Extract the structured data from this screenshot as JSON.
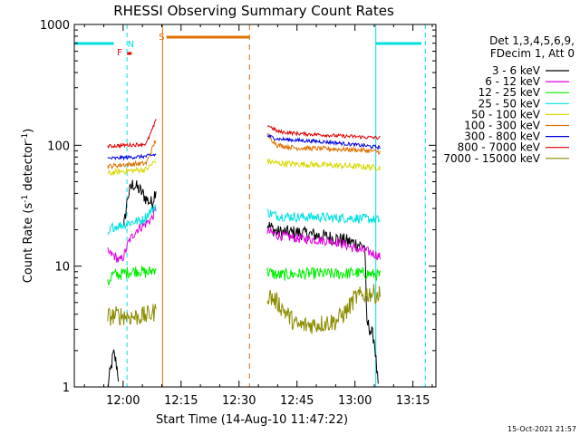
{
  "chart_data": {
    "type": "line",
    "title": "RHESSI Observing Summary Count Rates",
    "xlabel": "Start Time (14-Aug-10 11:47:22)",
    "ylabel_main": "Count Rate (s",
    "ylabel_sup1": "-1",
    "ylabel_mid": " detector",
    "ylabel_sup2": "-1",
    "ylabel_end": ")",
    "yscale": "log",
    "ylim": [
      1,
      1000
    ],
    "xlim_minutes": [
      -12.63,
      80.95
    ],
    "x_unit": "minutes after 12:00",
    "x_ticks": [
      {
        "label": "12:00",
        "value": 0
      },
      {
        "label": "12:15",
        "value": 15
      },
      {
        "label": "12:30",
        "value": 30
      },
      {
        "label": "12:45",
        "value": 45
      },
      {
        "label": "13:00",
        "value": 60
      },
      {
        "label": "13:15",
        "value": 75
      }
    ],
    "y_ticks": [
      {
        "label": "1",
        "value": 1
      },
      {
        "label": "10",
        "value": 10
      },
      {
        "label": "100",
        "value": 100
      },
      {
        "label": "1000",
        "value": 1000
      }
    ],
    "legend_header": [
      "Det 1,3,4,5,6,9,",
      "FDecim 1, Att 0"
    ],
    "legend_placement": "right",
    "series": [
      {
        "name": "3 - 6 keV",
        "color": "#000000",
        "noise": 0.06,
        "seg1": [
          [
            -4.0,
            1.0
          ],
          [
            -3.2,
            1.4
          ],
          [
            -2.5,
            1.9
          ],
          [
            -1.8,
            1.6
          ],
          [
            -1.2,
            1.2
          ]
        ],
        "seg1b": [
          [
            0.1,
            20
          ],
          [
            1.2,
            38
          ],
          [
            2.5,
            48
          ],
          [
            4.5,
            42
          ],
          [
            6.0,
            36
          ],
          [
            7.5,
            33
          ],
          [
            8.5,
            44
          ]
        ],
        "seg2": [
          [
            37.3,
            22
          ],
          [
            40,
            19
          ],
          [
            45,
            19
          ],
          [
            50,
            18
          ],
          [
            55,
            17
          ],
          [
            60,
            15.5
          ],
          [
            62.6,
            14.5
          ],
          [
            63,
            3.5
          ],
          [
            65,
            2.5
          ],
          [
            66,
            1.0
          ]
        ]
      },
      {
        "name": "6 - 12 keV",
        "color": "#e000e0",
        "noise": 0.04,
        "seg1": [
          [
            -4.0,
            13
          ],
          [
            -2.0,
            12
          ],
          [
            -1.0,
            11
          ],
          [
            0.1,
            12
          ],
          [
            1.5,
            16
          ],
          [
            3.5,
            20
          ],
          [
            5.5,
            22
          ],
          [
            7.5,
            25
          ],
          [
            8.5,
            30
          ]
        ],
        "seg2": [
          [
            37.3,
            19.5
          ],
          [
            40,
            18
          ],
          [
            45,
            17
          ],
          [
            50,
            16.5
          ],
          [
            55,
            16
          ],
          [
            60,
            14
          ],
          [
            64,
            13
          ],
          [
            66.5,
            12
          ]
        ]
      },
      {
        "name": "12 - 25 keV",
        "color": "#00ee00",
        "noise": 0.05,
        "seg1": [
          [
            -4.0,
            7
          ],
          [
            -3.0,
            8.5
          ],
          [
            -1.0,
            8.5
          ],
          [
            1.5,
            9
          ],
          [
            4.0,
            9.2
          ],
          [
            6.0,
            8.8
          ],
          [
            8.0,
            9.3
          ],
          [
            8.5,
            10
          ]
        ],
        "seg2": [
          [
            37.3,
            9
          ],
          [
            40,
            8.4
          ],
          [
            45,
            8.6
          ],
          [
            50,
            8.7
          ],
          [
            55,
            8.6
          ],
          [
            60,
            8.8
          ],
          [
            64,
            8.6
          ],
          [
            66.5,
            8.4
          ]
        ]
      },
      {
        "name": "25 - 50 keV",
        "color": "#00e0e0",
        "noise": 0.04,
        "seg1": [
          [
            -4.0,
            17
          ],
          [
            -3.0,
            21
          ],
          [
            0,
            22
          ],
          [
            2,
            23
          ],
          [
            5,
            24
          ],
          [
            8.5,
            32
          ]
        ],
        "seg2": [
          [
            37.3,
            28
          ],
          [
            40,
            26
          ],
          [
            45,
            25.5
          ],
          [
            50,
            25.5
          ],
          [
            55,
            25
          ],
          [
            60,
            25
          ],
          [
            64,
            24.5
          ],
          [
            66.5,
            24
          ]
        ]
      },
      {
        "name": "50 - 100 keV",
        "color": "#d8d800",
        "noise": 0.025,
        "seg1": [
          [
            -4.0,
            58
          ],
          [
            -2.0,
            60
          ],
          [
            0,
            61
          ],
          [
            3,
            62
          ],
          [
            6,
            63
          ],
          [
            8.5,
            75
          ]
        ],
        "seg2": [
          [
            37.3,
            74
          ],
          [
            40,
            71
          ],
          [
            45,
            70
          ],
          [
            50,
            69
          ],
          [
            55,
            68
          ],
          [
            60,
            67
          ],
          [
            64,
            66
          ],
          [
            66.5,
            65
          ]
        ]
      },
      {
        "name": "100 - 300 keV",
        "color": "#e07000",
        "noise": 0.02,
        "seg1": [
          [
            -4.0,
            67
          ],
          [
            -2.0,
            68
          ],
          [
            0,
            69
          ],
          [
            3,
            70
          ],
          [
            6,
            71
          ],
          [
            8.5,
            112
          ]
        ],
        "seg2": [
          [
            37.3,
            122
          ],
          [
            40,
            100
          ],
          [
            45,
            95
          ],
          [
            50,
            94
          ],
          [
            55,
            93
          ],
          [
            60,
            92
          ],
          [
            64,
            90
          ],
          [
            66.5,
            88
          ]
        ]
      },
      {
        "name": "300 - 800 keV",
        "color": "#0000e0",
        "noise": 0.015,
        "seg1": [
          [
            -4.0,
            78
          ],
          [
            -2.0,
            78
          ],
          [
            0,
            79
          ],
          [
            3,
            80
          ],
          [
            6,
            81
          ],
          [
            8.5,
            84
          ]
        ],
        "seg2": [
          [
            37.3,
            120
          ],
          [
            40,
            113
          ],
          [
            45,
            110
          ],
          [
            50,
            108
          ],
          [
            55,
            105
          ],
          [
            60,
            101
          ],
          [
            64,
            98
          ],
          [
            66.5,
            96
          ]
        ]
      },
      {
        "name": "800 - 7000 keV",
        "color": "#e00000",
        "noise": 0.015,
        "seg1": [
          [
            -4.0,
            98
          ],
          [
            -2.0,
            99
          ],
          [
            0,
            100
          ],
          [
            3,
            101
          ],
          [
            6,
            103
          ],
          [
            8.5,
            160
          ]
        ],
        "seg2": [
          [
            37.3,
            148
          ],
          [
            40,
            130
          ],
          [
            45,
            125
          ],
          [
            50,
            123
          ],
          [
            55,
            120
          ],
          [
            60,
            118
          ],
          [
            64,
            116
          ],
          [
            66.5,
            115
          ]
        ]
      },
      {
        "name": "7000 - 15000 keV",
        "color": "#8c8c00",
        "noise": 0.08,
        "seg1": [
          [
            -4.0,
            3.8
          ],
          [
            -2.0,
            3.9
          ],
          [
            0,
            3.9
          ],
          [
            3,
            3.8
          ],
          [
            6,
            3.9
          ],
          [
            8.5,
            4.2
          ]
        ],
        "seg2": [
          [
            37.3,
            5.8
          ],
          [
            40,
            5.0
          ],
          [
            45,
            3.2
          ],
          [
            50,
            3.3
          ],
          [
            55,
            3.5
          ],
          [
            58,
            4.3
          ],
          [
            60,
            5.5
          ],
          [
            64,
            6.0
          ],
          [
            66.5,
            5.8
          ]
        ]
      }
    ],
    "annotations": {
      "flag_labels": [
        {
          "text": "F",
          "x_min": -0.9,
          "color": "#e00000"
        },
        {
          "text": "N",
          "x_min": 2.0,
          "color": "#00e0e0"
        },
        {
          "text": "S",
          "x_min": 10.0,
          "color": "#e07000"
        }
      ],
      "cyan_bars": [
        [
          -12.63,
          -2.4
        ],
        [
          65.4,
          77.2
        ]
      ],
      "orange_bar": [
        11.2,
        32.7
      ],
      "red_bar": [
        1.0,
        2.2
      ],
      "cyan_solid_lines": [
        -12.63,
        65.4
      ],
      "cyan_dashed_lines": [
        1.0,
        78.2
      ],
      "orange_solid_lines": [
        10.2
      ],
      "orange_dashed_lines": [
        32.7
      ]
    },
    "grid": false
  },
  "footer": {
    "timestamp": "15-Oct-2021 21:57"
  }
}
